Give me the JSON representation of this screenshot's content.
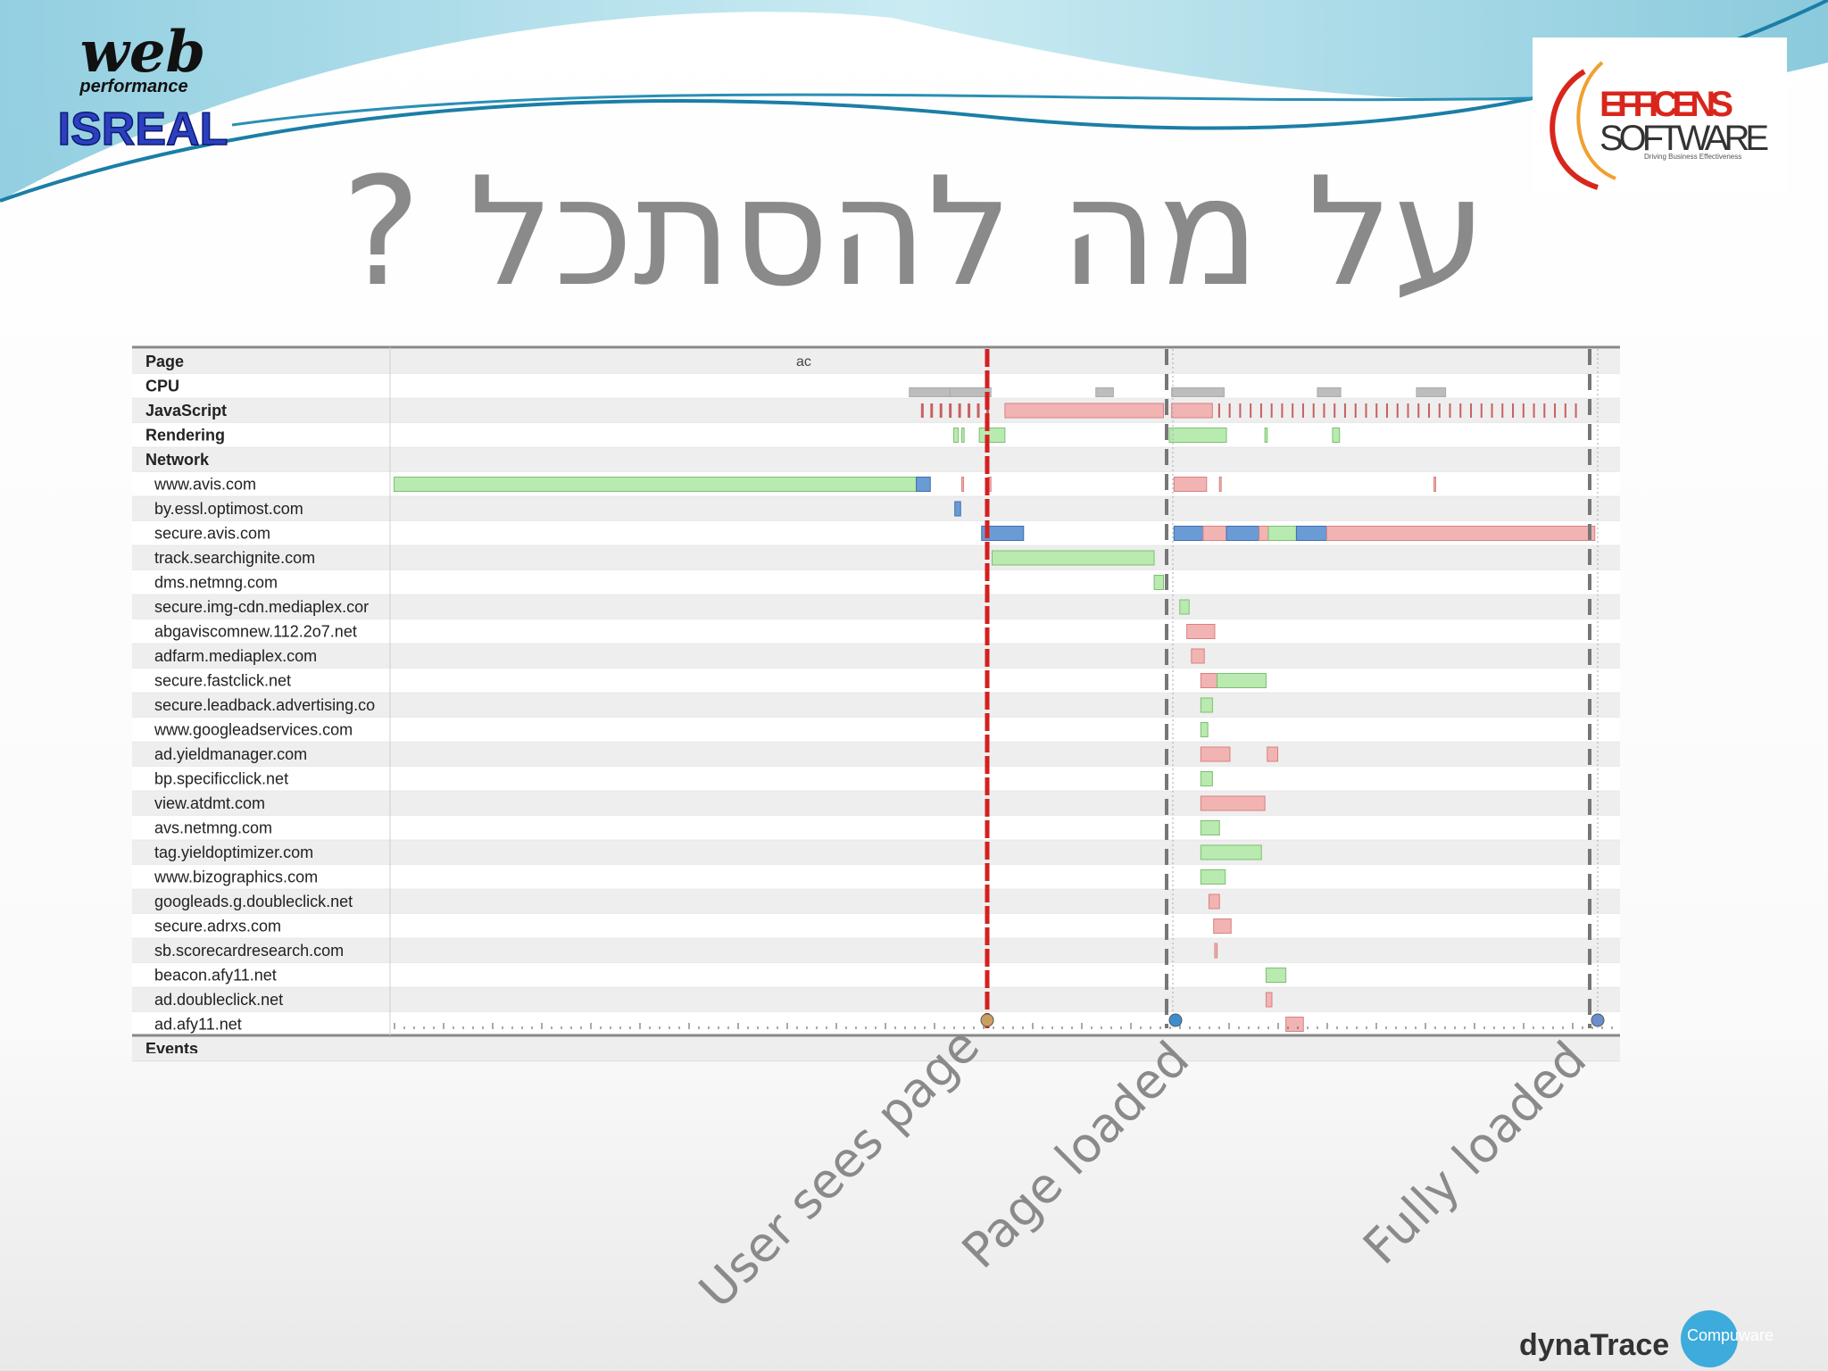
{
  "header": {
    "logo_word": "web",
    "logo_sub": "performance",
    "logo_country": "ISREAL",
    "partner_name": "EFFICENS",
    "partner_sub": "SOFTWARE",
    "partner_tagline": "Driving Business Effectiveness"
  },
  "title": "על מה להסתכל ?",
  "timeline": {
    "page_label": "ac",
    "rows": [
      "Page",
      "CPU",
      "JavaScript",
      "Rendering",
      "Network",
      "www.avis.com",
      "by.essl.optimost.com",
      "secure.avis.com",
      "track.searchignite.com",
      "dms.netmng.com",
      "secure.img-cdn.mediaplex.cor",
      "abgaviscomnew.112.2o7.net",
      "adfarm.mediaplex.com",
      "secure.fastclick.net",
      "secure.leadback.advertising.co",
      "www.googleadservices.com",
      "ad.yieldmanager.com",
      "bp.specificclick.net",
      "view.atdmt.com",
      "avs.netmng.com",
      "tag.yieldoptimizer.com",
      "www.bizographics.com",
      "googleads.g.doubleclick.net",
      "secure.adrxs.com",
      "sb.scorecardresearch.com",
      "beacon.afy11.net",
      "ad.doubleclick.net",
      "ad.afy11.net",
      "Events"
    ]
  },
  "annotations": [
    "User sees page",
    "Page loaded",
    "Fully loaded"
  ],
  "footer": {
    "brand": "dynaTrace",
    "partner": "Compuware"
  }
}
